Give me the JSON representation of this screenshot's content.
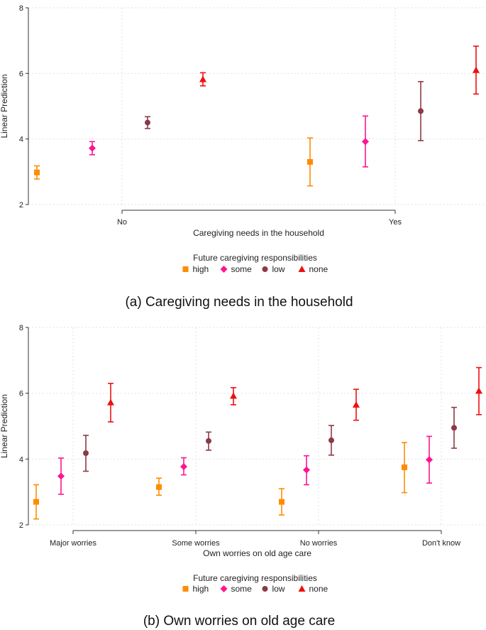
{
  "colors": {
    "high": "#ff8c00",
    "some": "#ff1493",
    "low": "#8b3a45",
    "none": "#ee1010"
  },
  "chart_data": [
    {
      "type": "scatter",
      "subtype": "point-estimates-with-confidence-intervals",
      "caption": "(a) Caregiving needs in the household",
      "ylabel": "Linear Prediction",
      "xlabel": "Caregiving needs in the household",
      "ylim": [
        2,
        8
      ],
      "yticks": [
        "2",
        "4",
        "6",
        "8"
      ],
      "categories": [
        "No",
        "Yes"
      ],
      "legend_title": "Future caregiving responsibilities",
      "legend_position": "bottom",
      "grid": true,
      "series": [
        {
          "name": "high",
          "marker": "square",
          "values": [
            2.98,
            3.3
          ],
          "lower": [
            2.78,
            2.57
          ],
          "upper": [
            3.18,
            4.03
          ]
        },
        {
          "name": "some",
          "marker": "diamond",
          "values": [
            3.72,
            3.92
          ],
          "lower": [
            3.52,
            3.15
          ],
          "upper": [
            3.92,
            4.7
          ]
        },
        {
          "name": "low",
          "marker": "circle",
          "values": [
            4.5,
            4.85
          ],
          "lower": [
            4.32,
            3.95
          ],
          "upper": [
            4.68,
            5.75
          ]
        },
        {
          "name": "none",
          "marker": "triangle",
          "values": [
            5.82,
            6.1
          ],
          "lower": [
            5.62,
            5.37
          ],
          "upper": [
            6.02,
            6.83
          ]
        }
      ]
    },
    {
      "type": "scatter",
      "subtype": "point-estimates-with-confidence-intervals",
      "caption": "(b) Own worries on old age care",
      "ylabel": "Linear Prediction",
      "xlabel": "Own worries on old age care",
      "ylim": [
        2,
        8
      ],
      "yticks": [
        "2",
        "4",
        "6",
        "8"
      ],
      "categories": [
        "Major worries",
        "Some worries",
        "No worries",
        "Don't know"
      ],
      "legend_title": "Future caregiving responsibilities",
      "legend_position": "bottom",
      "grid": true,
      "series": [
        {
          "name": "high",
          "marker": "square",
          "values": [
            2.7,
            3.15,
            2.7,
            3.75
          ],
          "lower": [
            2.18,
            2.9,
            2.3,
            2.98
          ],
          "upper": [
            3.22,
            3.42,
            3.1,
            4.5
          ]
        },
        {
          "name": "some",
          "marker": "diamond",
          "values": [
            3.48,
            3.77,
            3.67,
            3.98
          ],
          "lower": [
            2.93,
            3.52,
            3.22,
            3.27
          ],
          "upper": [
            4.03,
            4.04,
            4.1,
            4.69
          ]
        },
        {
          "name": "low",
          "marker": "circle",
          "values": [
            4.18,
            4.55,
            4.57,
            4.95
          ],
          "lower": [
            3.63,
            4.27,
            4.12,
            4.33
          ],
          "upper": [
            4.72,
            4.82,
            5.02,
            5.57
          ]
        },
        {
          "name": "none",
          "marker": "triangle",
          "values": [
            5.72,
            5.92,
            5.65,
            6.07
          ],
          "lower": [
            5.13,
            5.65,
            5.18,
            5.35
          ],
          "upper": [
            6.3,
            6.17,
            6.12,
            6.78
          ]
        }
      ]
    }
  ]
}
